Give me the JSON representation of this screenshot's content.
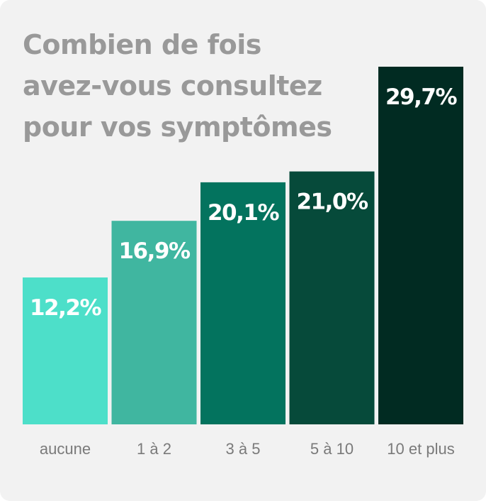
{
  "chart_data": {
    "type": "bar",
    "title_lines": [
      "Combien de fois",
      "avez-vous consultez",
      "pour vos symptômes"
    ],
    "categories": [
      "aucune",
      "1 à 2",
      "3 à 5",
      "5 à 10",
      "10 et plus"
    ],
    "values": [
      12.2,
      16.9,
      20.1,
      21.0,
      29.7
    ],
    "value_labels": [
      "12,2%",
      "16,9%",
      "20,1%",
      "21,0%",
      "29,7%"
    ],
    "colors": [
      "#4ddfc9",
      "#40b6a0",
      "#03735e",
      "#064a3a",
      "#012b22"
    ],
    "ylim": [
      0,
      29.7
    ],
    "grid": false,
    "legend": "none"
  }
}
